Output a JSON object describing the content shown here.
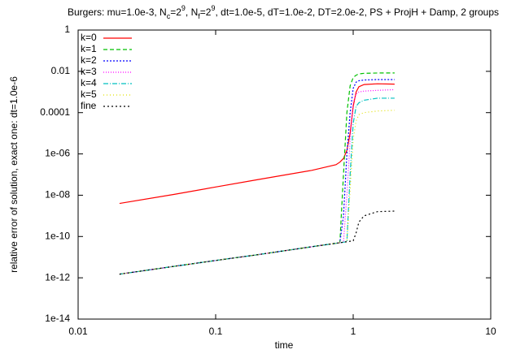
{
  "chart_data": {
    "type": "line",
    "title_parts": [
      "Burgers: mu=1.0e-3, N",
      "c",
      "=2",
      "9",
      ", N",
      "f",
      "=2",
      "9",
      ", dt=1.0e-5, dT=1.0e-2, DT=2.0e-2, PS + ProjH + Damp, 2 groups"
    ],
    "x_label": "time",
    "y_label": "relative error of solution, exact one: dt=1.0e-6",
    "xscale": "log",
    "yscale": "log",
    "xlim": [
      0.01,
      10
    ],
    "xticks": [
      0.01,
      0.1,
      1,
      10
    ],
    "ylim": [
      1e-14,
      1
    ],
    "yticks": [
      {
        "value": 1e-14,
        "label": "1e-14"
      },
      {
        "value": 1e-12,
        "label": "1e-12"
      },
      {
        "value": 1e-10,
        "label": "1e-10"
      },
      {
        "value": 1e-08,
        "label": "1e-08"
      },
      {
        "value": 1e-06,
        "label": "1e-06"
      },
      0.0001,
      0.01,
      1
    ],
    "legend": "top-left",
    "x": [
      0.02,
      0.05,
      0.1,
      0.2,
      0.5,
      0.75,
      0.8,
      0.85,
      0.9,
      0.95,
      1,
      1.05,
      1.1,
      1.2,
      1.5,
      2
    ],
    "series": [
      {
        "name": "k=0",
        "color": "#ff0000",
        "dash": "",
        "values": [
          4e-09,
          1.1e-08,
          2.5e-08,
          5.6e-08,
          1.6e-07,
          3e-07,
          4e-07,
          6e-07,
          1.5e-06,
          1e-05,
          0.0002,
          0.001,
          0.0018,
          0.0023,
          0.0025,
          0.0024
        ]
      },
      {
        "name": "k=1",
        "color": "#00c000",
        "dash": "5,3",
        "values": [
          1.5e-12,
          3.6e-12,
          6.9e-12,
          1.3e-11,
          3.2e-11,
          4.7e-11,
          5e-11,
          1e-07,
          0.0001,
          0.002,
          0.005,
          0.0065,
          0.0075,
          0.008,
          0.0083,
          0.0083
        ]
      },
      {
        "name": "k=2",
        "color": "#0000ff",
        "dash": "2,2",
        "values": [
          1.5e-12,
          3.6e-12,
          6.9e-12,
          1.3e-11,
          3.2e-11,
          4.7e-11,
          5e-11,
          1e-09,
          1e-06,
          0.0001,
          0.0015,
          0.003,
          0.0035,
          0.0038,
          0.004,
          0.004
        ]
      },
      {
        "name": "k=3",
        "color": "#ff00ff",
        "dash": "1,2",
        "values": [
          1.5e-12,
          3.6e-12,
          6.9e-12,
          1.3e-11,
          3.2e-11,
          4.7e-11,
          5e-11,
          5.3e-11,
          1e-08,
          5e-06,
          0.0003,
          0.0008,
          0.001,
          0.0011,
          0.0012,
          0.0013
        ]
      },
      {
        "name": "k=4",
        "color": "#00c0c0",
        "dash": "6,2,1,2",
        "values": [
          1.5e-12,
          3.6e-12,
          6.9e-12,
          1.3e-11,
          3.2e-11,
          4.7e-11,
          5e-11,
          5.3e-11,
          5.6e-11,
          1e-07,
          3e-05,
          0.0002,
          0.0003,
          0.0004,
          0.0005,
          0.0005
        ]
      },
      {
        "name": "k=5",
        "color": "#e0e000",
        "dash": "1,3",
        "values": [
          1.5e-12,
          3.6e-12,
          6.9e-12,
          1.3e-11,
          3.2e-11,
          4.7e-11,
          5e-11,
          5.3e-11,
          5.6e-11,
          2e-08,
          5e-06,
          4e-05,
          8e-05,
          0.0001,
          0.00012,
          0.00013
        ]
      },
      {
        "name": "fine",
        "color": "#000000",
        "dash": "2,3",
        "values": [
          1.5e-12,
          3.6e-12,
          6.9e-12,
          1.3e-11,
          3.2e-11,
          4.7e-11,
          5e-11,
          5.3e-11,
          5.6e-11,
          5.9e-11,
          6.2e-11,
          1.5e-10,
          5e-10,
          1e-09,
          1.6e-09,
          1.7e-09
        ]
      }
    ]
  }
}
